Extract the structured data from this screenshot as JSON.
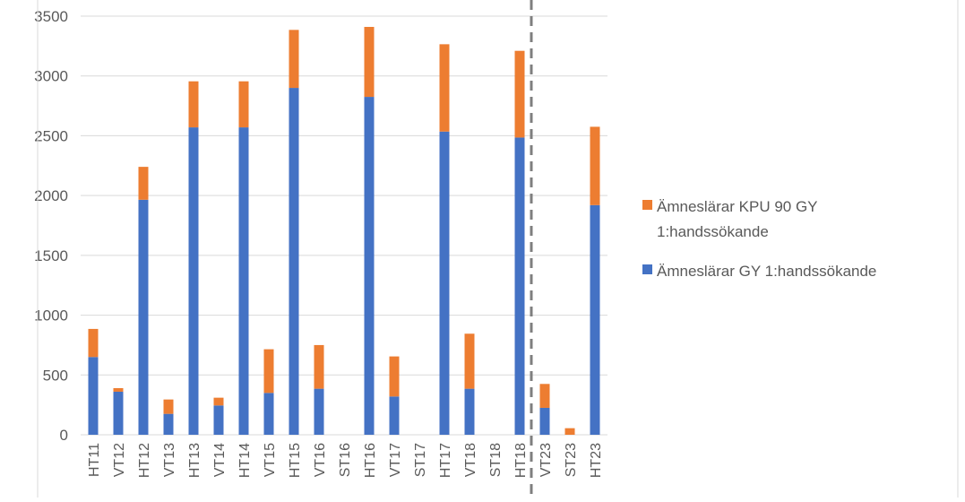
{
  "chart_data": {
    "type": "bar",
    "stacked": true,
    "categories": [
      "HT11",
      "VT12",
      "HT12",
      "VT13",
      "HT13",
      "VT14",
      "HT14",
      "VT15",
      "HT15",
      "VT16",
      "ST16",
      "HT16",
      "VT17",
      "ST17",
      "HT17",
      "VT18",
      "ST18",
      "HT18",
      "VT23",
      "ST23",
      "HT23"
    ],
    "series": [
      {
        "name": "Ämneslärar GY 1:handssökande",
        "color": "#4472C4",
        "values": [
          650,
          360,
          1965,
          175,
          2570,
          245,
          2570,
          350,
          2900,
          385,
          0,
          2825,
          320,
          0,
          2535,
          385,
          0,
          2485,
          225,
          0,
          1920
        ]
      },
      {
        "name": "Ämneslärar KPU 90 GY 1:handssökande",
        "color": "#ED7D31",
        "values": [
          235,
          30,
          275,
          120,
          385,
          65,
          385,
          365,
          485,
          365,
          0,
          585,
          335,
          0,
          730,
          460,
          0,
          725,
          200,
          55,
          655
        ]
      }
    ],
    "y_ticks": [
      "0",
      "500",
      "1000",
      "1500",
      "2000",
      "2500",
      "3000",
      "3500"
    ],
    "ylim": [
      0,
      3500
    ],
    "grid": true,
    "legend_position": "right",
    "legend": [
      {
        "line1": "Ämneslärar KPU 90 GY",
        "line2": "1:handssökande",
        "color": "#ED7D31"
      },
      {
        "line1": "Ämneslärar GY 1:handssökande",
        "line2": "",
        "color": "#4472C4"
      }
    ],
    "separator_after_category": "HT18"
  }
}
